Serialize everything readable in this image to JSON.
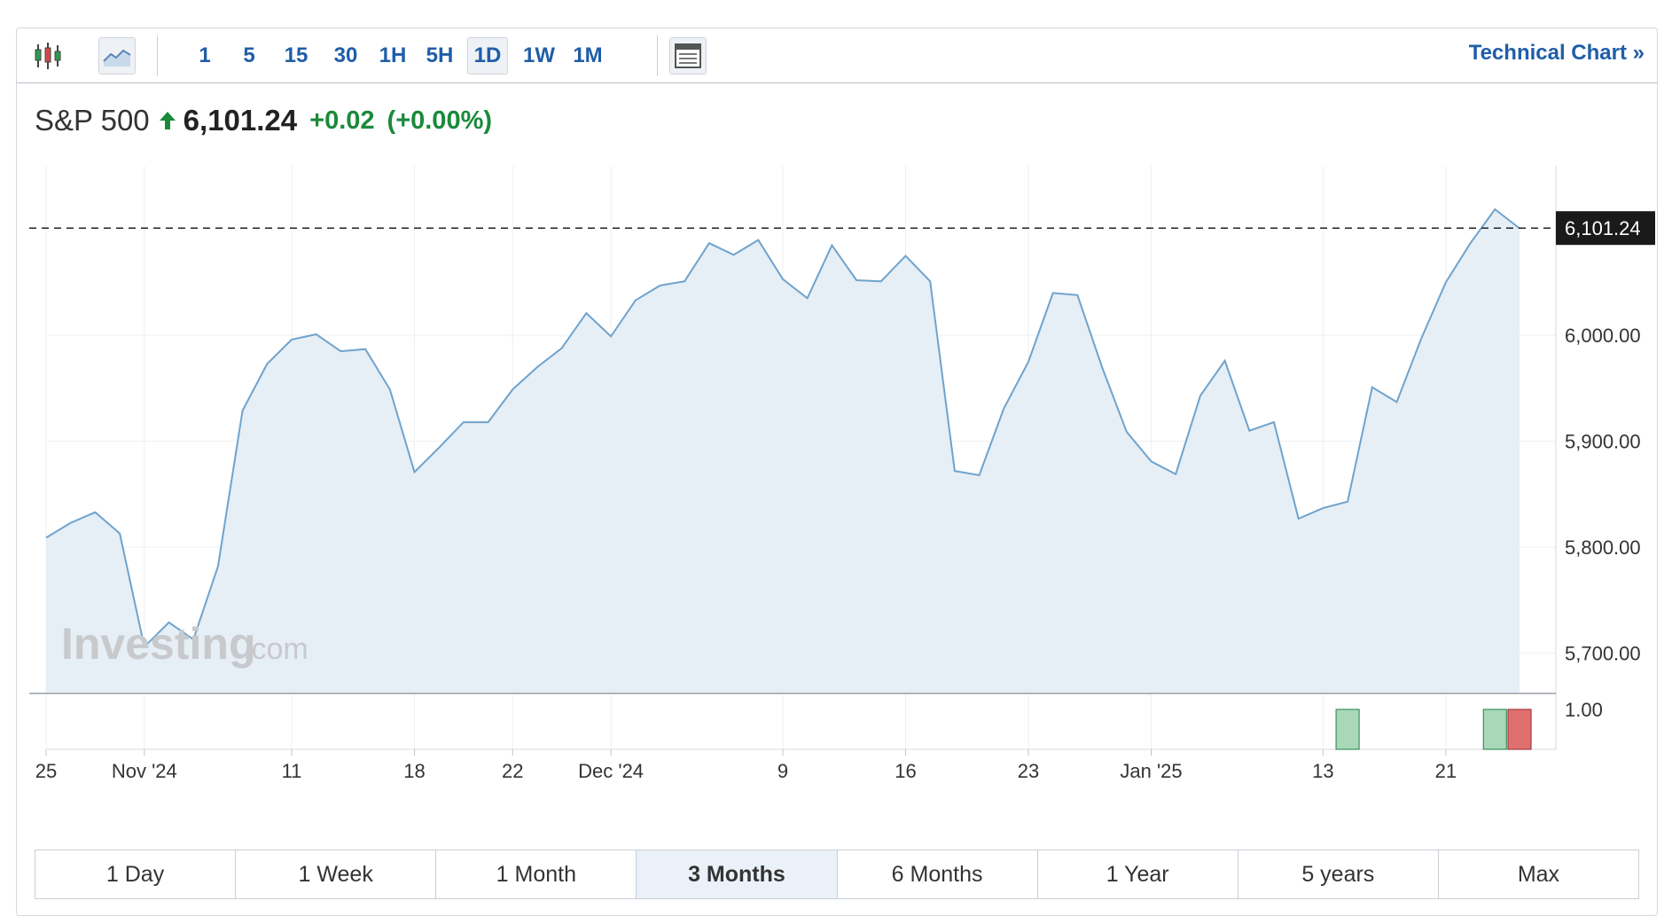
{
  "toolbar": {
    "chart_type_icons": [
      "candlestick-icon",
      "area-chart-icon"
    ],
    "active_chart_type": "area-chart-icon",
    "periods": [
      "1",
      "5",
      "15",
      "30",
      "1H",
      "5H",
      "1D",
      "1W",
      "1M"
    ],
    "active_period": "1D",
    "table_icon": "table-icon",
    "technical_link": "Technical Chart",
    "technical_link_arrow": "»"
  },
  "quote": {
    "name": "S&P 500",
    "direction": "up",
    "price": "6,101.24",
    "change": "+0.02",
    "change_pct": "(+0.00%)",
    "up_color": "#1a8a3a"
  },
  "watermark": {
    "brand": "Investing",
    "suffix": ".com"
  },
  "chart_data": {
    "type": "area",
    "line_color": "#6fa3cc",
    "fill_color": "#e6eef6",
    "x_tick_labels": [
      "25",
      "Nov '24",
      "11",
      "18",
      "22",
      "Dec '24",
      "9",
      "16",
      "23",
      "Jan '25",
      "13",
      "21"
    ],
    "x_tick_index": [
      0,
      4,
      10,
      15,
      19,
      23,
      30,
      35,
      40,
      45,
      52,
      57
    ],
    "y_ticks": [
      5700,
      5800,
      5900,
      6000
    ],
    "y_tick_labels": [
      "5,700.00",
      "5,800.00",
      "5,900.00",
      "6,000.00"
    ],
    "ylim": [
      5662,
      6160
    ],
    "last_price": 6101.24,
    "last_price_label": "6,101.24",
    "series": [
      {
        "values": [
          5809,
          5823,
          5833,
          5813,
          5706,
          5729,
          5713,
          5782,
          5929,
          5973,
          5996,
          6001,
          5985,
          5987,
          5949,
          5871,
          5894,
          5918,
          5918,
          5949,
          5970,
          5988,
          6021,
          5999,
          6033,
          6047,
          6051,
          6087,
          6076,
          6090,
          6053,
          6035,
          6085,
          6052,
          6051,
          6075,
          6051,
          5872,
          5868,
          5931,
          5975,
          6040,
          6038,
          5970,
          5909,
          5881,
          5869,
          5943,
          5976,
          5910,
          5918,
          5827,
          5837,
          5843,
          5951,
          5937,
          5997,
          6050,
          6087,
          6119,
          6101
        ]
      }
    ],
    "volume": {
      "axis_label": "1.00",
      "bars": [
        {
          "index": 53,
          "direction": "up",
          "color": "#a8d8b8"
        },
        {
          "index": 59,
          "direction": "up",
          "color": "#a8d8b8"
        },
        {
          "index": 60,
          "direction": "down",
          "color": "#e07070"
        }
      ]
    }
  },
  "ranges": {
    "items": [
      "1 Day",
      "1 Week",
      "1 Month",
      "3 Months",
      "6 Months",
      "1 Year",
      "5 years",
      "Max"
    ],
    "active": "3 Months"
  }
}
